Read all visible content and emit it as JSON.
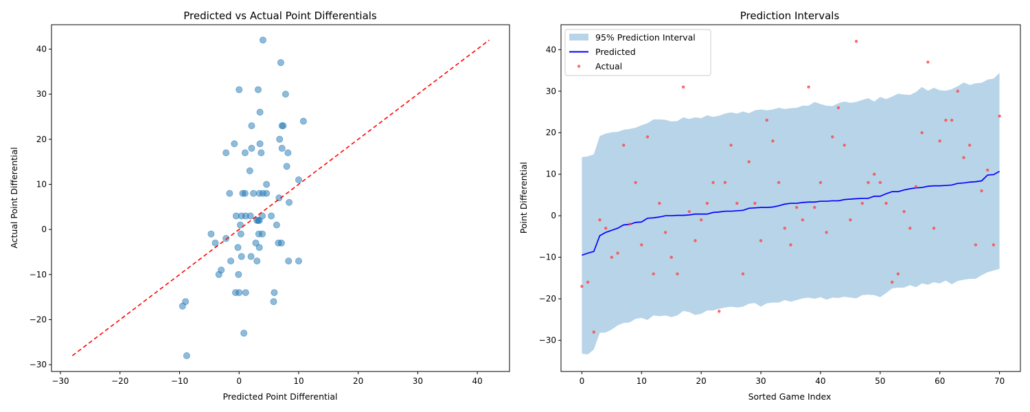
{
  "chart_data": [
    {
      "type": "scatter",
      "title": "Predicted vs Actual Point Differentials",
      "xlabel": "Predicted Point Differential",
      "ylabel": "Actual Point Differential",
      "xlim": [
        -31.5,
        45.4
      ],
      "ylim": [
        -31.5,
        45.4
      ],
      "xticks": [
        -30,
        -20,
        -10,
        0,
        10,
        20,
        30,
        40
      ],
      "yticks": [
        -30,
        -20,
        -10,
        0,
        10,
        20,
        30,
        40
      ],
      "grid": false,
      "colors": {
        "points": "#1f77b4",
        "reference_line": "#ff0000"
      },
      "reference_line": {
        "style": "dashed",
        "from": [
          -28,
          -28
        ],
        "to": [
          42,
          42
        ]
      },
      "points": [
        [
          4.0,
          42
        ],
        [
          7.0,
          37
        ],
        [
          0.0,
          31
        ],
        [
          3.2,
          31
        ],
        [
          7.8,
          30
        ],
        [
          3.5,
          26
        ],
        [
          7.2,
          23
        ],
        [
          7.4,
          23
        ],
        [
          2.1,
          23
        ],
        [
          10.8,
          24
        ],
        [
          6.8,
          20
        ],
        [
          3.5,
          19
        ],
        [
          -0.8,
          19
        ],
        [
          7.2,
          18
        ],
        [
          2.1,
          18
        ],
        [
          -2.2,
          17
        ],
        [
          1.0,
          17
        ],
        [
          3.7,
          17
        ],
        [
          8.2,
          17
        ],
        [
          8.0,
          14
        ],
        [
          1.8,
          13
        ],
        [
          10.0,
          11
        ],
        [
          4.6,
          10
        ],
        [
          -1.6,
          8
        ],
        [
          0.6,
          8
        ],
        [
          1.0,
          8
        ],
        [
          2.4,
          8
        ],
        [
          3.4,
          8
        ],
        [
          4.0,
          8
        ],
        [
          4.6,
          8
        ],
        [
          6.7,
          7
        ],
        [
          8.4,
          6
        ],
        [
          -0.5,
          3
        ],
        [
          0.4,
          3
        ],
        [
          1.1,
          3
        ],
        [
          1.9,
          3
        ],
        [
          3.9,
          3
        ],
        [
          5.4,
          3
        ],
        [
          0.2,
          1
        ],
        [
          6.3,
          1
        ],
        [
          3.0,
          2
        ],
        [
          3.2,
          2
        ],
        [
          3.4,
          2
        ],
        [
          -4.7,
          -1
        ],
        [
          0.3,
          -1
        ],
        [
          3.3,
          -1
        ],
        [
          3.9,
          -1
        ],
        [
          -2.2,
          -2
        ],
        [
          -4.0,
          -3
        ],
        [
          2.8,
          -3
        ],
        [
          6.6,
          -3
        ],
        [
          7.1,
          -3
        ],
        [
          -0.2,
          -4
        ],
        [
          3.4,
          -4
        ],
        [
          -1.4,
          -7
        ],
        [
          0.4,
          -6
        ],
        [
          2.0,
          -6
        ],
        [
          3.0,
          -7
        ],
        [
          8.3,
          -7
        ],
        [
          10.0,
          -7
        ],
        [
          -3.0,
          -9
        ],
        [
          -3.4,
          -10
        ],
        [
          -0.1,
          -10
        ],
        [
          -0.6,
          -14
        ],
        [
          0.0,
          -14
        ],
        [
          1.1,
          -14
        ],
        [
          5.9,
          -14
        ],
        [
          -9.0,
          -16
        ],
        [
          5.8,
          -16
        ],
        [
          -9.5,
          -17
        ],
        [
          0.8,
          -23
        ],
        [
          -8.8,
          -28
        ]
      ]
    },
    {
      "type": "line",
      "title": "Prediction Intervals",
      "xlabel": "Sorted Game Index",
      "ylabel": "Point Differential",
      "xlim": [
        -3.5,
        73.5
      ],
      "ylim": [
        -37.5,
        46.0
      ],
      "xticks": [
        0,
        10,
        20,
        30,
        40,
        50,
        60,
        70
      ],
      "yticks": [
        -30,
        -20,
        -10,
        0,
        10,
        20,
        30,
        40
      ],
      "grid": false,
      "legend_placement": "top-left",
      "colors": {
        "band": "#b8d4e8",
        "predicted": "#0000ff",
        "actual": "#ff4444"
      },
      "series": [
        {
          "name": "95% Prediction Interval",
          "lower": [
            -33.2,
            -33.4,
            -32.2,
            -28.2,
            -28.1,
            -27.4,
            -26.4,
            -25.8,
            -25.7,
            -24.8,
            -24.6,
            -25.1,
            -24.0,
            -24.2,
            -24.0,
            -24.4,
            -24.0,
            -22.9,
            -23.2,
            -23.9,
            -23.6,
            -22.8,
            -22.8,
            -22.4,
            -22.1,
            -21.9,
            -22.1,
            -21.9,
            -21.2,
            -21.0,
            -21.9,
            -21.1,
            -20.9,
            -20.9,
            -20.3,
            -20.7,
            -20.3,
            -19.9,
            -19.7,
            -20.0,
            -19.6,
            -20.2,
            -19.7,
            -19.8,
            -19.5,
            -19.7,
            -19.9,
            -19.1,
            -19.0,
            -19.1,
            -19.6,
            -18.6,
            -17.5,
            -17.3,
            -17.3,
            -16.7,
            -17.2,
            -16.3,
            -16.6,
            -16.0,
            -16.3,
            -15.6,
            -16.5,
            -15.7,
            -15.4,
            -15.2,
            -15.2,
            -14.3,
            -13.6,
            -13.2,
            -12.8
          ]
        },
        {
          "name": "Predicted",
          "values": [
            -9.5,
            -9.0,
            -8.6,
            -4.8,
            -4.0,
            -3.5,
            -3.0,
            -2.2,
            -2.1,
            -1.6,
            -1.5,
            -0.6,
            -0.5,
            -0.3,
            0.0,
            0.0,
            0.1,
            0.1,
            0.2,
            0.4,
            0.4,
            0.4,
            0.8,
            0.9,
            1.1,
            1.1,
            1.2,
            1.3,
            1.8,
            1.9,
            2.0,
            2.0,
            2.1,
            2.4,
            2.8,
            3.0,
            3.0,
            3.2,
            3.3,
            3.3,
            3.5,
            3.5,
            3.6,
            3.6,
            3.9,
            4.0,
            4.1,
            4.2,
            4.2,
            4.7,
            4.7,
            5.3,
            5.8,
            5.8,
            6.2,
            6.5,
            6.7,
            6.8,
            7.1,
            7.2,
            7.2,
            7.3,
            7.4,
            7.8,
            7.9,
            8.1,
            8.2,
            8.4,
            9.8,
            9.9,
            10.7
          ]
        },
        {
          "name": "Actual",
          "values": [
            -17,
            -16,
            -28,
            -1,
            -3,
            -10,
            -9,
            17,
            -2,
            8,
            -7,
            19,
            -14,
            3,
            -4,
            -10,
            -14,
            31,
            1,
            -6,
            -1,
            3,
            8,
            -23,
            8,
            17,
            3,
            -14,
            13,
            3,
            -6,
            23,
            18,
            8,
            -3,
            -7,
            2,
            -1,
            31,
            2,
            8,
            -4,
            19,
            26,
            17,
            -1,
            42,
            3,
            8,
            10,
            8,
            3,
            -16,
            -14,
            1,
            -3,
            7,
            20,
            37,
            -3,
            18,
            23,
            23,
            30,
            14,
            17,
            -7,
            6,
            11,
            -7,
            24
          ]
        }
      ],
      "upper": [
        14.1,
        14.3,
        14.8,
        19.2,
        19.8,
        20.1,
        20.2,
        20.7,
        20.9,
        21.2,
        21.8,
        22.3,
        23.2,
        23.2,
        23.1,
        22.7,
        22.8,
        23.7,
        23.3,
        23.7,
        23.5,
        24.2,
        23.8,
        24.1,
        24.6,
        24.9,
        24.6,
        25.1,
        24.7,
        25.4,
        25.6,
        25.4,
        25.6,
        26.0,
        25.7,
        25.9,
        26.0,
        26.5,
        26.5,
        27.4,
        26.9,
        26.5,
        26.4,
        27.1,
        27.5,
        27.2,
        27.4,
        27.9,
        28.3,
        27.5,
        28.6,
        28.1,
        28.7,
        29.4,
        29.2,
        29.1,
        29.8,
        31.0,
        30.1,
        30.8,
        30.2,
        30.1,
        30.5,
        31.2,
        32.1,
        31.5,
        31.9,
        32.0,
        32.8,
        33.0,
        34.4
      ]
    }
  ]
}
